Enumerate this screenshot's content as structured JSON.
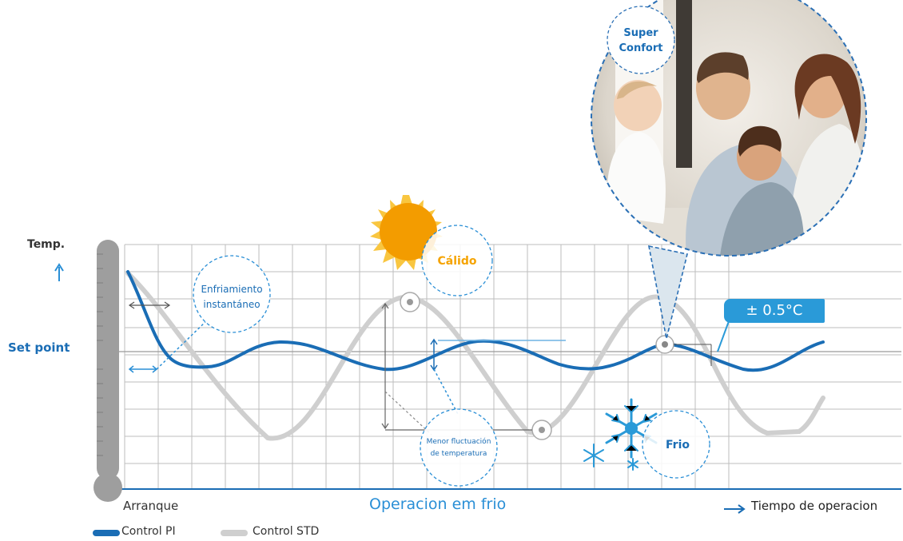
{
  "labels": {
    "temp": "Temp.",
    "set_point": "Set point",
    "start": "Arranque",
    "operation": "Operacion em frio",
    "time_axis": "Tiempo de operacion"
  },
  "callouts": {
    "rapid_cooling_line1": "Enfriamiento",
    "rapid_cooling_line2": "instantáneo",
    "warm": "Cálido",
    "cold": "Frio",
    "less_fluctuation_line1": "Menor fluctuación",
    "less_fluctuation_line2": "de temperatura",
    "super_line1": "Super",
    "super_line2": "Confort",
    "tolerance": "± 0.5°C"
  },
  "legend": {
    "pi": "Control PI",
    "std": "Control STD"
  },
  "colors": {
    "pi_line": "#1a6db5",
    "std_line": "#cfcfcf",
    "accent_blue": "#2a9ad8",
    "sun": "#f5a300",
    "grid": "#bdbdbd",
    "thermometer": "#9e9e9e"
  },
  "icons": [
    "sun-icon",
    "snowflake-icon",
    "thermometer-icon",
    "arrow-right-icon",
    "arrow-up-icon"
  ]
}
